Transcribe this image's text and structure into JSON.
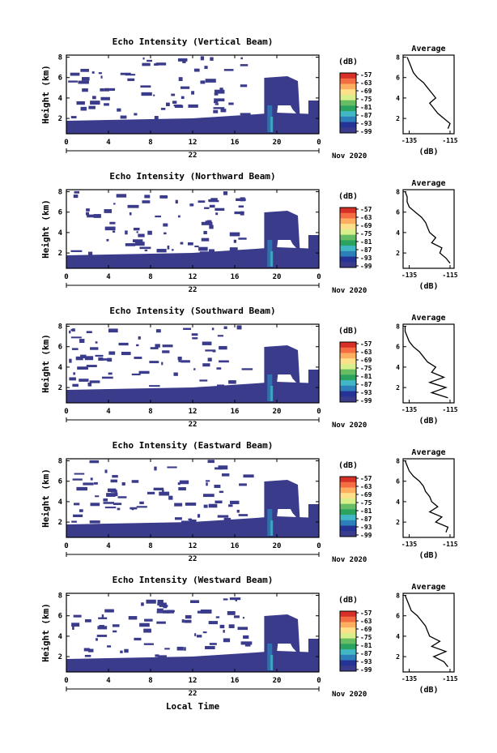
{
  "figure": {
    "xlabel": "Local Time",
    "unit_label": "(dB)",
    "avg_title": "Average",
    "avg_xlabel": "(dB)",
    "date_label": "Nov 2020",
    "day_label": "22"
  },
  "chart_data": [
    {
      "type": "heatmap",
      "title": "Echo Intensity (Vertical Beam)",
      "ylabel": "Height (km)",
      "xlabel": "",
      "x_ticks": [
        "0",
        "4",
        "8",
        "12",
        "16",
        "20",
        "0"
      ],
      "xlim": [
        0,
        24
      ],
      "y_ticks": [
        "2",
        "4",
        "6",
        "8"
      ],
      "ylim": [
        0.5,
        8.2
      ],
      "colorbar": {
        "label": "(dB)",
        "ticks": [
          "-57",
          "-63",
          "-69",
          "-75",
          "-81",
          "-87",
          "-93",
          "-99"
        ],
        "colors": [
          "#d73027",
          "#f46d43",
          "#fdae61",
          "#fee08b",
          "#d9ef8b",
          "#66bd63",
          "#2ca25f",
          "#41b6c4",
          "#2c7fb8",
          "#253494",
          "#3b3b8c"
        ]
      },
      "average_profile": {
        "title": "Average",
        "xlabel": "(dB)",
        "x_ticks": [
          "-135",
          "-115"
        ],
        "xlim": [
          -138,
          -113
        ],
        "y_ticks": [
          "2",
          "4",
          "6",
          "8"
        ],
        "height": [
          1.0,
          1.5,
          2.0,
          2.5,
          3.0,
          3.5,
          4.0,
          4.5,
          5.0,
          5.5,
          6.0,
          6.5,
          7.0,
          7.5,
          8.0
        ],
        "value": [
          -116,
          -115,
          -118,
          -121,
          -123,
          -125,
          -122,
          -124,
          -126,
          -128,
          -131,
          -133,
          -134,
          -135,
          -136
        ]
      }
    },
    {
      "type": "heatmap",
      "title": "Echo Intensity (Northward Beam)",
      "ylabel": "Height (km)",
      "xlabel": "",
      "x_ticks": [
        "0",
        "4",
        "8",
        "12",
        "16",
        "20",
        "0"
      ],
      "xlim": [
        0,
        24
      ],
      "y_ticks": [
        "2",
        "4",
        "6",
        "8"
      ],
      "ylim": [
        0.5,
        8.2
      ],
      "colorbar": {
        "label": "(dB)",
        "ticks": [
          "-57",
          "-63",
          "-69",
          "-75",
          "-81",
          "-87",
          "-93",
          "-99"
        ],
        "colors": [
          "#d73027",
          "#f46d43",
          "#fdae61",
          "#fee08b",
          "#d9ef8b",
          "#66bd63",
          "#2ca25f",
          "#41b6c4",
          "#2c7fb8",
          "#253494",
          "#3b3b8c"
        ]
      },
      "average_profile": {
        "title": "Average",
        "xlabel": "(dB)",
        "x_ticks": [
          "-135",
          "-115"
        ],
        "xlim": [
          -138,
          -113
        ],
        "y_ticks": [
          "2",
          "4",
          "6",
          "8"
        ],
        "height": [
          1.0,
          1.5,
          2.0,
          2.5,
          3.0,
          3.5,
          4.0,
          4.5,
          5.0,
          5.5,
          6.0,
          6.5,
          7.0,
          7.5,
          8.0
        ],
        "value": [
          -115,
          -117,
          -120,
          -119,
          -124,
          -122,
          -125,
          -126,
          -127,
          -129,
          -132,
          -135,
          -136,
          -136,
          -137
        ]
      }
    },
    {
      "type": "heatmap",
      "title": "Echo Intensity (Southward Beam)",
      "ylabel": "Height (km)",
      "xlabel": "",
      "x_ticks": [
        "0",
        "4",
        "8",
        "12",
        "16",
        "20",
        "0"
      ],
      "xlim": [
        0,
        24
      ],
      "y_ticks": [
        "2",
        "4",
        "6",
        "8"
      ],
      "ylim": [
        0.5,
        8.2
      ],
      "colorbar": {
        "label": "(dB)",
        "ticks": [
          "-57",
          "-63",
          "-69",
          "-75",
          "-81",
          "-87",
          "-93",
          "-99"
        ],
        "colors": [
          "#d73027",
          "#f46d43",
          "#fdae61",
          "#fee08b",
          "#d9ef8b",
          "#66bd63",
          "#2ca25f",
          "#41b6c4",
          "#2c7fb8",
          "#253494",
          "#3b3b8c"
        ]
      },
      "average_profile": {
        "title": "Average",
        "xlabel": "(dB)",
        "x_ticks": [
          "-135",
          "-115"
        ],
        "xlim": [
          -138,
          -113
        ],
        "y_ticks": [
          "2",
          "4",
          "6",
          "8"
        ],
        "height": [
          1.0,
          1.5,
          2.0,
          2.5,
          3.0,
          3.5,
          4.0,
          4.5,
          5.0,
          5.5,
          6.0,
          6.5,
          7.0,
          7.5,
          8.0
        ],
        "value": [
          -116,
          -124,
          -117,
          -125,
          -118,
          -124,
          -122,
          -126,
          -128,
          -130,
          -133,
          -135,
          -136,
          -137,
          -137
        ]
      }
    },
    {
      "type": "heatmap",
      "title": "Echo Intensity (Eastward Beam)",
      "ylabel": "Height (km)",
      "xlabel": "",
      "x_ticks": [
        "0",
        "4",
        "8",
        "12",
        "16",
        "20",
        "0"
      ],
      "xlim": [
        0,
        24
      ],
      "y_ticks": [
        "2",
        "4",
        "6",
        "8"
      ],
      "ylim": [
        0.5,
        8.2
      ],
      "colorbar": {
        "label": "(dB)",
        "ticks": [
          "-57",
          "-63",
          "-69",
          "-75",
          "-81",
          "-87",
          "-93",
          "-99"
        ],
        "colors": [
          "#d73027",
          "#f46d43",
          "#fdae61",
          "#fee08b",
          "#d9ef8b",
          "#66bd63",
          "#2ca25f",
          "#41b6c4",
          "#2c7fb8",
          "#253494",
          "#3b3b8c"
        ]
      },
      "average_profile": {
        "title": "Average",
        "xlabel": "(dB)",
        "x_ticks": [
          "-135",
          "-115"
        ],
        "xlim": [
          -138,
          -113
        ],
        "y_ticks": [
          "2",
          "4",
          "6",
          "8"
        ],
        "height": [
          1.0,
          1.5,
          2.0,
          2.5,
          3.0,
          3.5,
          4.0,
          4.5,
          5.0,
          5.5,
          6.0,
          6.5,
          7.0,
          7.5,
          8.0
        ],
        "value": [
          -117,
          -116,
          -122,
          -119,
          -125,
          -121,
          -124,
          -125,
          -127,
          -128,
          -130,
          -133,
          -135,
          -136,
          -137
        ]
      }
    },
    {
      "type": "heatmap",
      "title": "Echo Intensity (Westward Beam)",
      "ylabel": "Height (km)",
      "xlabel": "Local Time",
      "x_ticks": [
        "0",
        "4",
        "8",
        "12",
        "16",
        "20",
        "0"
      ],
      "xlim": [
        0,
        24
      ],
      "y_ticks": [
        "2",
        "4",
        "6",
        "8"
      ],
      "ylim": [
        0.5,
        8.2
      ],
      "colorbar": {
        "label": "(dB)",
        "ticks": [
          "-57",
          "-63",
          "-69",
          "-75",
          "-81",
          "-87",
          "-93",
          "-99"
        ],
        "colors": [
          "#d73027",
          "#f46d43",
          "#fdae61",
          "#fee08b",
          "#d9ef8b",
          "#66bd63",
          "#2ca25f",
          "#41b6c4",
          "#2c7fb8",
          "#253494",
          "#3b3b8c"
        ]
      },
      "average_profile": {
        "title": "Average",
        "xlabel": "(dB)",
        "x_ticks": [
          "-135",
          "-115"
        ],
        "xlim": [
          -138,
          -113
        ],
        "y_ticks": [
          "2",
          "4",
          "6",
          "8"
        ],
        "height": [
          1.0,
          1.5,
          2.0,
          2.5,
          3.0,
          3.5,
          4.0,
          4.5,
          5.0,
          5.5,
          6.0,
          6.5,
          7.0,
          7.5,
          8.0
        ],
        "value": [
          -116,
          -118,
          -123,
          -117,
          -124,
          -120,
          -125,
          -126,
          -127,
          -129,
          -131,
          -134,
          -135,
          -136,
          -137
        ]
      }
    }
  ]
}
